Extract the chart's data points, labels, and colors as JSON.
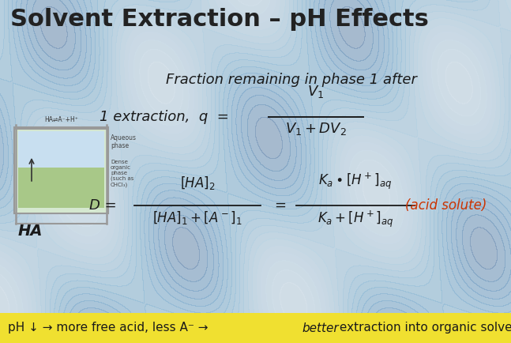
{
  "title": "Solvent Extraction – pH Effects",
  "title_fontsize": 22,
  "title_color": "#222222",
  "bg_color": "#c9d8e2",
  "yellow_bar_color": "#f0e030",
  "fraction_text": "Fraction remaining in phase 1 after",
  "extraction_label": "1 extraction,  q  =",
  "frac_numerator": "V₁",
  "frac_denominator": "V₁ + DV₂",
  "D_left_num": "[HA]₂",
  "D_left_den": "[HA]₁ + [A⁻]₁",
  "acid_solute_color": "#cc3300",
  "text_color": "#1a1a1a"
}
